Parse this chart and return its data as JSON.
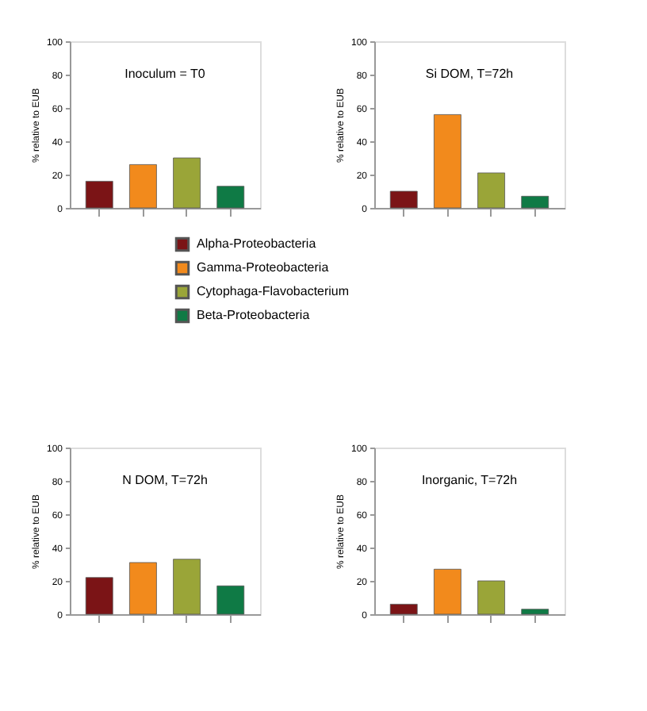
{
  "chart_data": [
    {
      "type": "bar",
      "title": "Inoculum = T0",
      "ylabel": "% relative to EUB",
      "categories": [
        null,
        null,
        null,
        null
      ],
      "ylim": [
        0,
        100
      ],
      "yticks": [
        0,
        20,
        40,
        60,
        80,
        100
      ],
      "grid": false,
      "tick_labels": "y",
      "legend": "bottom right",
      "series": [
        {
          "name": "Alpha-Proteobacteria",
          "color": "#7b1416",
          "values": [
            16,
            null,
            null,
            null
          ]
        },
        {
          "name": "Gamma-Proteobacteria",
          "color": "#f28a1c",
          "values": [
            null,
            26,
            null,
            null
          ]
        },
        {
          "name": "Cytophaga-Flavobacterium",
          "color": "#9aa538",
          "values": [
            null,
            null,
            30,
            null
          ]
        },
        {
          "name": "Beta-Proteobacteria",
          "color": "#0f7a45",
          "values": [
            null,
            null,
            null,
            13
          ]
        }
      ]
    },
    {
      "type": "bar",
      "title": "Si DOM, T=72h",
      "ylabel": "% relative to EUB",
      "categories": [
        null,
        null,
        null,
        null
      ],
      "ylim": [
        0,
        100
      ],
      "yticks": [
        0,
        20,
        40,
        60,
        80,
        100
      ],
      "grid": false,
      "tick_labels": "y",
      "values": [
        10,
        56,
        21,
        7
      ],
      "colors": [
        "#7b1416",
        "#f28a1c",
        "#9aa538",
        "#0f7a45"
      ]
    },
    {
      "type": "bar",
      "title": "N DOM, T=72h",
      "ylabel": "% relative to EUB",
      "categories": [
        null,
        null,
        null,
        null
      ],
      "ylim": [
        0,
        100
      ],
      "yticks": [
        0,
        20,
        40,
        60,
        80,
        100
      ],
      "grid": false,
      "tick_labels": "y",
      "values": [
        22,
        31,
        33,
        17
      ],
      "colors": [
        "#7b1416",
        "#f28a1c",
        "#9aa538",
        "#0f7a45"
      ]
    },
    {
      "type": "bar",
      "title": "Inorganic, T=72h",
      "ylabel": "% relative to EUB",
      "categories": [
        null,
        null,
        null,
        null
      ],
      "ylim": [
        0,
        100
      ],
      "yticks": [
        0,
        20,
        40,
        60,
        80,
        100
      ],
      "grid": false,
      "tick_labels": "y",
      "values": [
        6,
        27,
        20,
        3
      ],
      "colors": [
        "#7b1416",
        "#f28a1c",
        "#9aa538",
        "#0f7a45"
      ]
    }
  ]
}
